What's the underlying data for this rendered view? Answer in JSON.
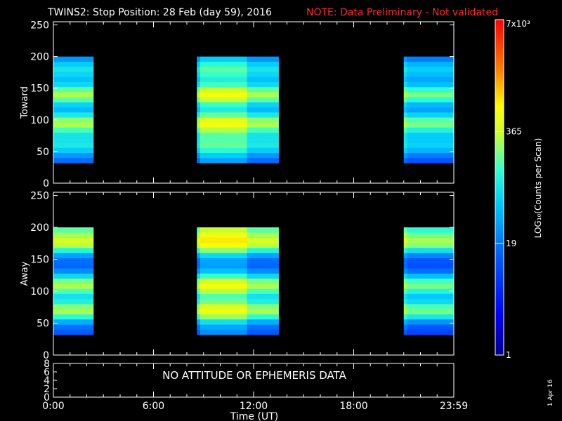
{
  "title": {
    "main": "TWINS2: Stop Position: 28 Feb (day  59), 2016",
    "note": "NOTE: Data Preliminary - Not validated"
  },
  "chart_data": [
    {
      "type": "heatmap",
      "panel": "Toward",
      "ylabel": "Toward",
      "ylim": [
        0,
        255
      ],
      "yticks": [
        0,
        50,
        100,
        150,
        200,
        250
      ],
      "xlim_hours": [
        0,
        24
      ],
      "xticks": [
        "0:00",
        "6:00",
        "12:00",
        "18:00",
        "23:59"
      ],
      "data_intervals_hours": [
        [
          0.0,
          2.4
        ],
        [
          8.6,
          13.5
        ],
        [
          21.0,
          24.0
        ]
      ],
      "energy_bands": [
        {
          "center": 140,
          "intensity": "high"
        },
        {
          "center": 95,
          "intensity": "high"
        },
        {
          "center": 60,
          "intensity": "medium"
        },
        {
          "center": 180,
          "intensity": "medium"
        }
      ]
    },
    {
      "type": "heatmap",
      "panel": "Away",
      "ylabel": "Away",
      "ylim": [
        0,
        255
      ],
      "yticks": [
        0,
        50,
        100,
        150,
        200,
        250
      ],
      "xlim_hours": [
        0,
        24
      ],
      "xticks": [
        "0:00",
        "6:00",
        "12:00",
        "18:00",
        "23:59"
      ],
      "data_intervals_hours": [
        [
          0.0,
          2.4
        ],
        [
          8.6,
          13.5
        ],
        [
          21.0,
          24.0
        ]
      ],
      "energy_bands": [
        {
          "center": 175,
          "intensity": "high"
        },
        {
          "center": 110,
          "intensity": "high"
        },
        {
          "center": 70,
          "intensity": "high"
        },
        {
          "center": 200,
          "intensity": "medium"
        }
      ]
    },
    {
      "type": "line",
      "panel": "attitude",
      "ylim": [
        0,
        8
      ],
      "yticks": [
        0,
        2,
        4,
        6,
        8
      ],
      "message": "NO ATTITUDE OR EPHEMERIS DATA"
    }
  ],
  "colorbar": {
    "label": "LOG₁₀(Counts per Scan)",
    "top_label": "7x10³",
    "tick_values": [
      "1",
      "19",
      "365"
    ],
    "scale": "log"
  },
  "xaxis": {
    "label": "Time (UT)"
  },
  "date_stamp": "1 Apr 16"
}
